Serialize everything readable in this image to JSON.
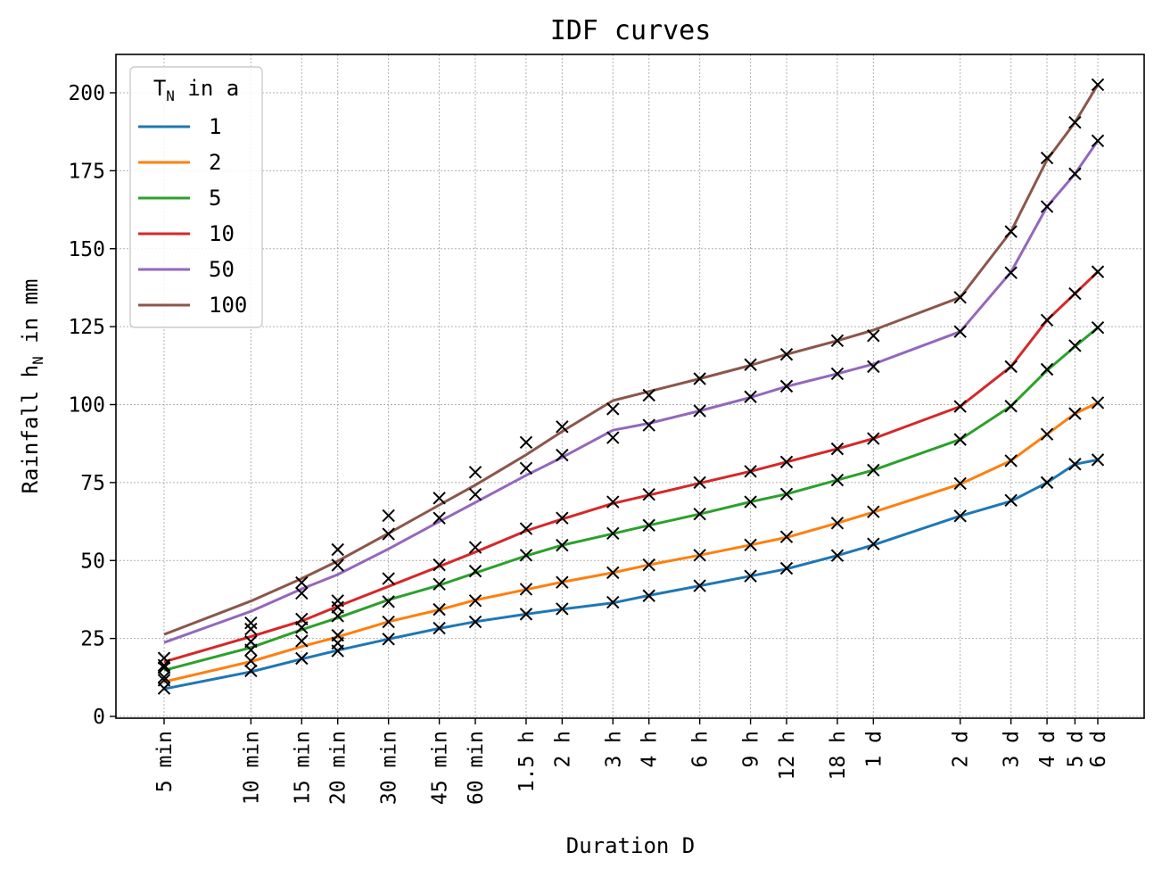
{
  "chart_data": {
    "type": "line",
    "title": "IDF curves",
    "xlabel": "Duration D",
    "ylabel": "Rainfall h",
    "ylabel_sub": "N",
    "ylabel_suffix": " in mm",
    "x_scale": "log",
    "x_unit": "min",
    "x_ticks": [
      {
        "label": "5 min",
        "value": 5
      },
      {
        "label": "10 min",
        "value": 10
      },
      {
        "label": "15 min",
        "value": 15
      },
      {
        "label": "20 min",
        "value": 20
      },
      {
        "label": "30 min",
        "value": 30
      },
      {
        "label": "45 min",
        "value": 45
      },
      {
        "label": "60 min",
        "value": 60
      },
      {
        "label": "1.5 h",
        "value": 90
      },
      {
        "label": "2 h",
        "value": 120
      },
      {
        "label": "3 h",
        "value": 180
      },
      {
        "label": "4 h",
        "value": 240
      },
      {
        "label": "6 h",
        "value": 360
      },
      {
        "label": "9 h",
        "value": 540
      },
      {
        "label": "12 h",
        "value": 720
      },
      {
        "label": "18 h",
        "value": 1080
      },
      {
        "label": "1 d",
        "value": 1440
      },
      {
        "label": "2 d",
        "value": 2880
      },
      {
        "label": "3 d",
        "value": 4320
      },
      {
        "label": "4 d",
        "value": 5760
      },
      {
        "label": "5 d",
        "value": 7200
      },
      {
        "label": "6 d",
        "value": 8640
      }
    ],
    "y_ticks": [
      0,
      25,
      50,
      75,
      100,
      125,
      150,
      175,
      200
    ],
    "ylim": [
      -2,
      212
    ],
    "grid": true,
    "legend": {
      "title": "T",
      "title_sub": "N",
      "title_suffix": " in a",
      "position": "top-left"
    },
    "x": [
      5,
      10,
      15,
      20,
      30,
      45,
      60,
      90,
      120,
      180,
      240,
      360,
      540,
      720,
      1080,
      1440,
      2880,
      4320,
      5760,
      7200,
      8640
    ],
    "series": [
      {
        "name": "1",
        "color": "#1f77b4",
        "values": [
          8.8,
          14.3,
          18.4,
          21.2,
          24.8,
          28.2,
          30.4,
          32.8,
          34.4,
          36.4,
          38.8,
          41.9,
          45.0,
          47.3,
          51.6,
          55.0,
          64.3,
          69.0,
          75.0,
          80.9,
          82.3
        ]
      },
      {
        "name": "2",
        "color": "#ff7f0e",
        "values": [
          11.1,
          17.6,
          22.4,
          25.5,
          30.4,
          34.2,
          37.3,
          40.7,
          43.1,
          46.1,
          48.6,
          51.7,
          55.0,
          57.4,
          62.0,
          65.5,
          74.5,
          82.0,
          90.5,
          97.1,
          100.6
        ]
      },
      {
        "name": "5",
        "color": "#2ca02c",
        "values": [
          14.8,
          22.1,
          27.8,
          31.6,
          37.4,
          42.1,
          46.0,
          51.5,
          54.9,
          58.6,
          61.3,
          64.9,
          68.8,
          71.3,
          75.8,
          79.0,
          88.8,
          99.5,
          111.0,
          118.6,
          124.7
        ]
      },
      {
        "name": "10",
        "color": "#d62728",
        "values": [
          17.5,
          25.6,
          30.6,
          35.3,
          41.7,
          48.1,
          52.7,
          59.5,
          63.3,
          68.3,
          71.0,
          74.8,
          78.6,
          81.6,
          85.8,
          89.1,
          99.4,
          112.2,
          127.1,
          135.6,
          142.6
        ]
      },
      {
        "name": "50",
        "color": "#9467bd",
        "values": [
          23.7,
          33.7,
          40.9,
          45.5,
          53.7,
          62.5,
          68.6,
          77.3,
          83.1,
          91.8,
          94.0,
          98.0,
          102.3,
          105.8,
          109.9,
          113.0,
          123.4,
          142.5,
          163.5,
          174.0,
          184.6
        ]
      },
      {
        "name": "100",
        "color": "#8c564b",
        "values": [
          26.3,
          37.0,
          44.2,
          49.8,
          58.7,
          67.8,
          74.2,
          83.9,
          91.4,
          101.3,
          104.2,
          108.3,
          112.6,
          116.1,
          120.5,
          123.9,
          134.4,
          155.5,
          178.5,
          190.5,
          202.6
        ]
      }
    ],
    "markers": {
      "symbol": "x",
      "color": "#000000",
      "points": [
        [
          5,
          9.0
        ],
        [
          5,
          11.6
        ],
        [
          5,
          12.6
        ],
        [
          5,
          15.6
        ],
        [
          5,
          16.4
        ],
        [
          5,
          18.7
        ],
        [
          10,
          14.6
        ],
        [
          10,
          17.8
        ],
        [
          10,
          21.3
        ],
        [
          10,
          24.0
        ],
        [
          10,
          28.0
        ],
        [
          10,
          30.0
        ],
        [
          15,
          18.6
        ],
        [
          15,
          24.2
        ],
        [
          15,
          28.5
        ],
        [
          15,
          31.2
        ],
        [
          15,
          39.5
        ],
        [
          15,
          42.9
        ],
        [
          20,
          21.0
        ],
        [
          20,
          23.5
        ],
        [
          20,
          26.0
        ],
        [
          20,
          32.2
        ],
        [
          20,
          35.0
        ],
        [
          20,
          37.1
        ],
        [
          20,
          48.5
        ],
        [
          20,
          53.5
        ],
        [
          30,
          24.8
        ],
        [
          30,
          30.3
        ],
        [
          30,
          36.8
        ],
        [
          30,
          44.2
        ],
        [
          30,
          58.5
        ],
        [
          30,
          64.4
        ],
        [
          45,
          28.3
        ],
        [
          45,
          34.3
        ],
        [
          45,
          42.4
        ],
        [
          45,
          48.6
        ],
        [
          45,
          63.6
        ],
        [
          45,
          70.0
        ],
        [
          60,
          30.3
        ],
        [
          60,
          37.1
        ],
        [
          60,
          46.6
        ],
        [
          60,
          54.2
        ],
        [
          60,
          71.2
        ],
        [
          60,
          78.3
        ],
        [
          90,
          32.8
        ],
        [
          90,
          40.8
        ],
        [
          90,
          51.7
        ],
        [
          90,
          60.2
        ],
        [
          90,
          79.6
        ],
        [
          90,
          87.9
        ],
        [
          120,
          34.5
        ],
        [
          120,
          43.0
        ],
        [
          120,
          54.9
        ],
        [
          120,
          63.6
        ],
        [
          120,
          83.8
        ],
        [
          120,
          92.9
        ],
        [
          180,
          36.6
        ],
        [
          180,
          46.1
        ],
        [
          180,
          58.7
        ],
        [
          180,
          68.8
        ],
        [
          180,
          89.4
        ],
        [
          180,
          98.6
        ],
        [
          240,
          38.7
        ],
        [
          240,
          48.6
        ],
        [
          240,
          61.3
        ],
        [
          240,
          71.2
        ],
        [
          240,
          93.4
        ],
        [
          240,
          103.0
        ],
        [
          360,
          41.9
        ],
        [
          360,
          51.7
        ],
        [
          360,
          64.9
        ],
        [
          360,
          75.0
        ],
        [
          360,
          98.0
        ],
        [
          360,
          108.3
        ],
        [
          540,
          45.0
        ],
        [
          540,
          55.0
        ],
        [
          540,
          68.8
        ],
        [
          540,
          78.6
        ],
        [
          540,
          102.5
        ],
        [
          540,
          112.8
        ],
        [
          720,
          47.5
        ],
        [
          720,
          57.6
        ],
        [
          720,
          71.3
        ],
        [
          720,
          81.6
        ],
        [
          720,
          105.9
        ],
        [
          720,
          116.1
        ],
        [
          1080,
          51.6
        ],
        [
          1080,
          62.0
        ],
        [
          1080,
          75.8
        ],
        [
          1080,
          85.8
        ],
        [
          1080,
          109.9
        ],
        [
          1080,
          120.5
        ],
        [
          1440,
          55.3
        ],
        [
          1440,
          65.6
        ],
        [
          1440,
          79.0
        ],
        [
          1440,
          89.1
        ],
        [
          1440,
          112.2
        ],
        [
          1440,
          122.1
        ],
        [
          2880,
          64.3
        ],
        [
          2880,
          74.7
        ],
        [
          2880,
          88.8
        ],
        [
          2880,
          99.4
        ],
        [
          2880,
          123.4
        ],
        [
          2880,
          134.4
        ],
        [
          4320,
          69.3
        ],
        [
          4320,
          82.0
        ],
        [
          4320,
          99.5
        ],
        [
          4320,
          112.2
        ],
        [
          4320,
          142.3
        ],
        [
          4320,
          155.5
        ],
        [
          5760,
          75.0
        ],
        [
          5760,
          90.5
        ],
        [
          5760,
          111.3
        ],
        [
          5760,
          127.1
        ],
        [
          5760,
          163.5
        ],
        [
          5760,
          179.1
        ],
        [
          7200,
          80.9
        ],
        [
          7200,
          97.1
        ],
        [
          7200,
          118.9
        ],
        [
          7200,
          135.6
        ],
        [
          7200,
          174.0
        ],
        [
          7200,
          190.5
        ],
        [
          8640,
          82.3
        ],
        [
          8640,
          100.6
        ],
        [
          8640,
          124.7
        ],
        [
          8640,
          142.6
        ],
        [
          8640,
          184.6
        ],
        [
          8640,
          202.6
        ]
      ]
    }
  }
}
